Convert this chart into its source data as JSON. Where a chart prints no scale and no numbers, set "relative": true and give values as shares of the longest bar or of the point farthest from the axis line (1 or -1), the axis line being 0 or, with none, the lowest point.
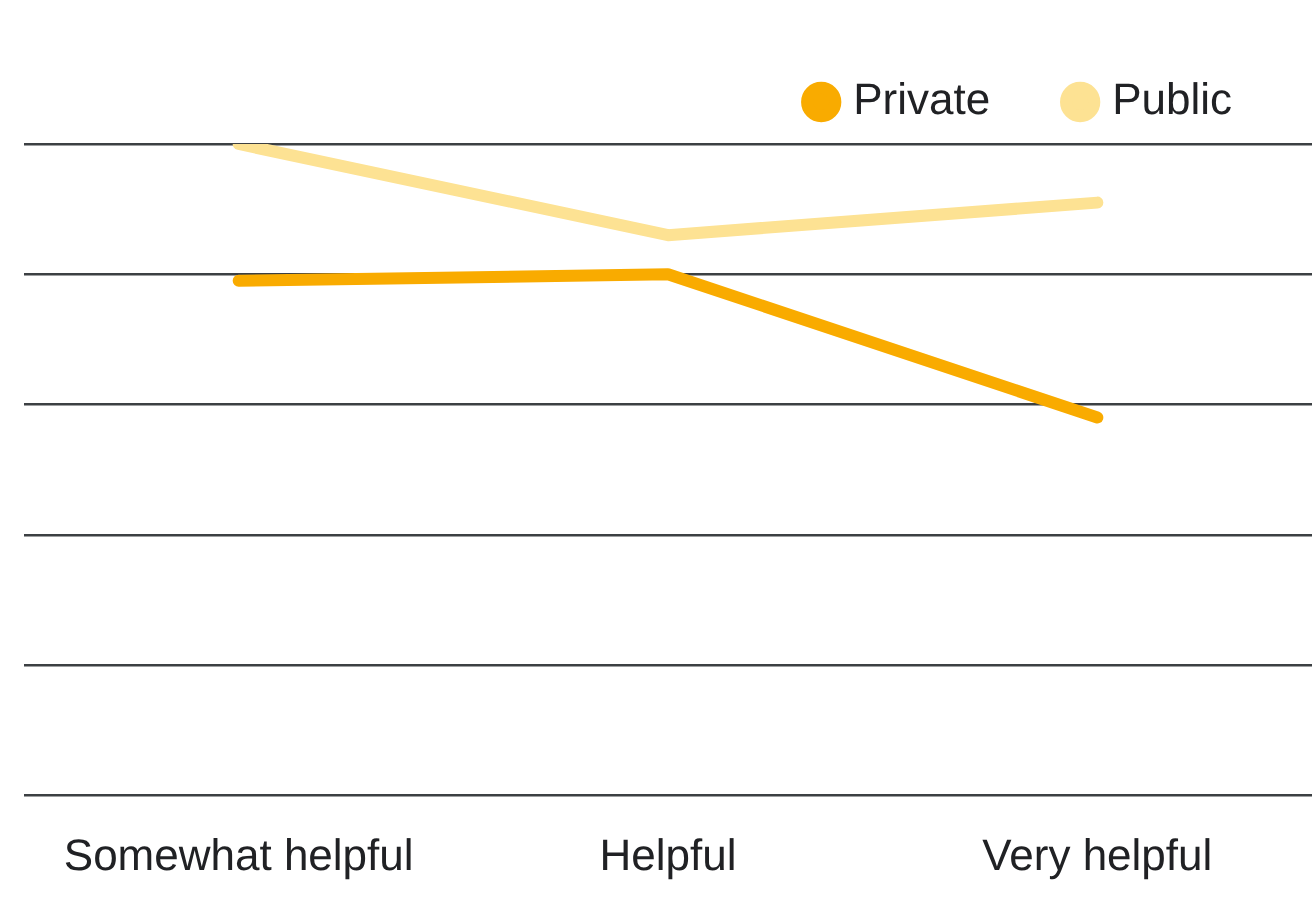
{
  "chart_data": {
    "type": "line",
    "relative": true,
    "categories": [
      "Somewhat helpful",
      "Helpful",
      "Very helpful"
    ],
    "series": [
      {
        "name": "Private",
        "color": "#f9ab00",
        "values": [
          0.79,
          0.8,
          0.58
        ]
      },
      {
        "name": "Public",
        "color": "#fde293",
        "values": [
          1,
          0.86,
          0.91
        ]
      }
    ],
    "grid": "y",
    "legend": "top right",
    "marker": "none",
    "line_style": "solid"
  }
}
